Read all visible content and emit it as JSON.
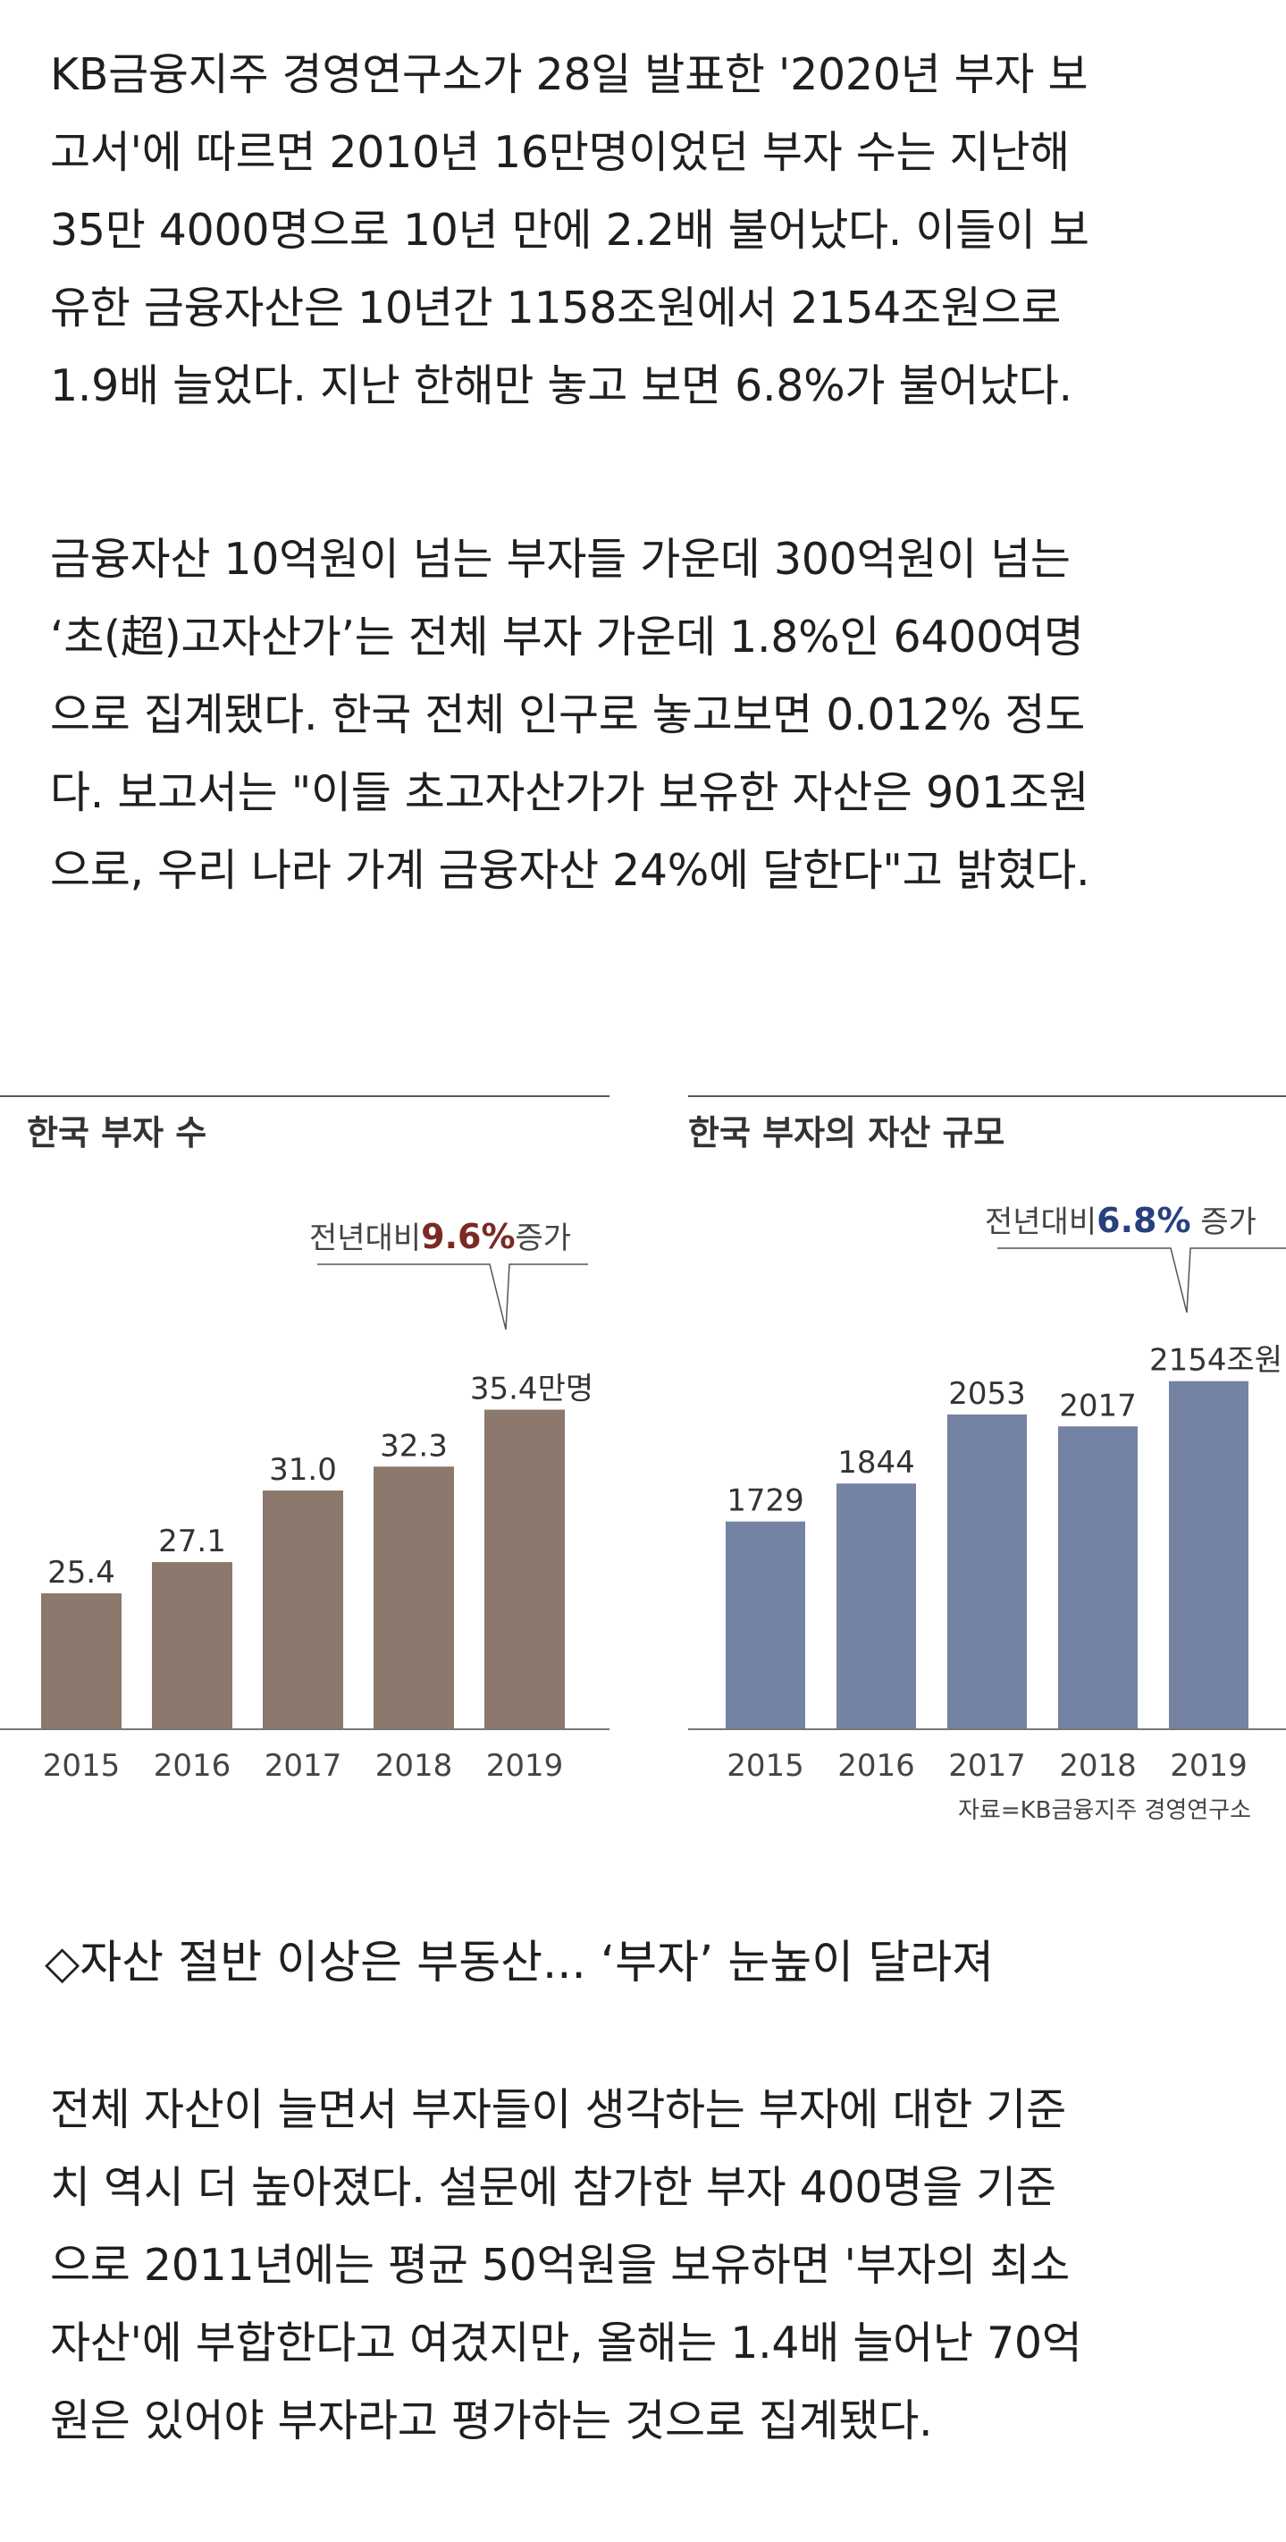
{
  "paragraph1": [
    "KB금융지주 경영연구소가 28일 발표한 '2020년 부자 보",
    "고서'에 따르면 2010년 16만명이었던 부자 수는 지난해",
    "35만 4000명으로 10년 만에 2.2배 불어났다. 이들이 보",
    "유한 금융자산은 10년간 1158조원에서 2154조원으로",
    "1.9배 늘었다. 지난 한해만 놓고 보면 6.8%가 불어났다."
  ],
  "paragraph2": [
    "금융자산 10억원이 넘는 부자들 가운데 300억원이 넘는",
    "‘초(超)고자산가’는 전체 부자 가운데 1.8%인 6400여명",
    "으로 집계됐다. 한국 전체 인구로 놓고보면 0.012% 정도",
    "다. 보고서는 \"이들 초고자산가가 보유한 자산은 901조원",
    "으로, 우리 나라 가계 금융자산 24%에 달한다\"고 밝혔다."
  ],
  "section_heading": "◇자산 절반 이상은 부동산... ‘부자’ 눈높이 달라져",
  "paragraph3": [
    "전체 자산이 늘면서 부자들이 생각하는 부자에 대한 기준",
    "치 역시 더 높아졌다. 설문에 참가한 부자 400명을 기준",
    "으로 2011년에는 평균 50억원을 보유하면 '부자의 최소",
    "자산'에 부합한다고 여겼지만, 올해는 1.4배 늘어난 70억",
    "원은 있어야 부자라고 평가하는 것으로 집계됐다."
  ],
  "source": "자료=KB금융지주 경영연구소",
  "chart_data": [
    {
      "type": "bar",
      "title": "한국 부자 수",
      "categories": [
        "2015",
        "2016",
        "2017",
        "2018",
        "2019"
      ],
      "values": [
        25.4,
        27.1,
        31.0,
        32.3,
        35.4
      ],
      "value_labels": [
        "25.4",
        "27.1",
        "31.0",
        "32.3",
        "35.4만명"
      ],
      "unit": "만명",
      "ylim": [
        18,
        36.5
      ],
      "bar_color": "#8c786c",
      "callout": {
        "prefix": "전년대비",
        "highlight": "9.6%",
        "suffix": "증가",
        "highlight_color": "#7a2a24"
      },
      "xlabel": "",
      "ylabel": ""
    },
    {
      "type": "bar",
      "title": "한국 부자의 자산 규모",
      "categories": [
        "2015",
        "2016",
        "2017",
        "2018",
        "2019"
      ],
      "values": [
        1729,
        1844,
        2053,
        2017,
        2154
      ],
      "value_labels": [
        "1729",
        "1844",
        "2053",
        "2017",
        "2154조원"
      ],
      "unit": "조원",
      "ylim": [
        1100,
        2210
      ],
      "bar_color": "#7482a3",
      "callout": {
        "prefix": "전년대비",
        "highlight": "6.8%",
        "suffix": " 증가",
        "highlight_color": "#28407e"
      },
      "xlabel": "",
      "ylabel": ""
    }
  ]
}
